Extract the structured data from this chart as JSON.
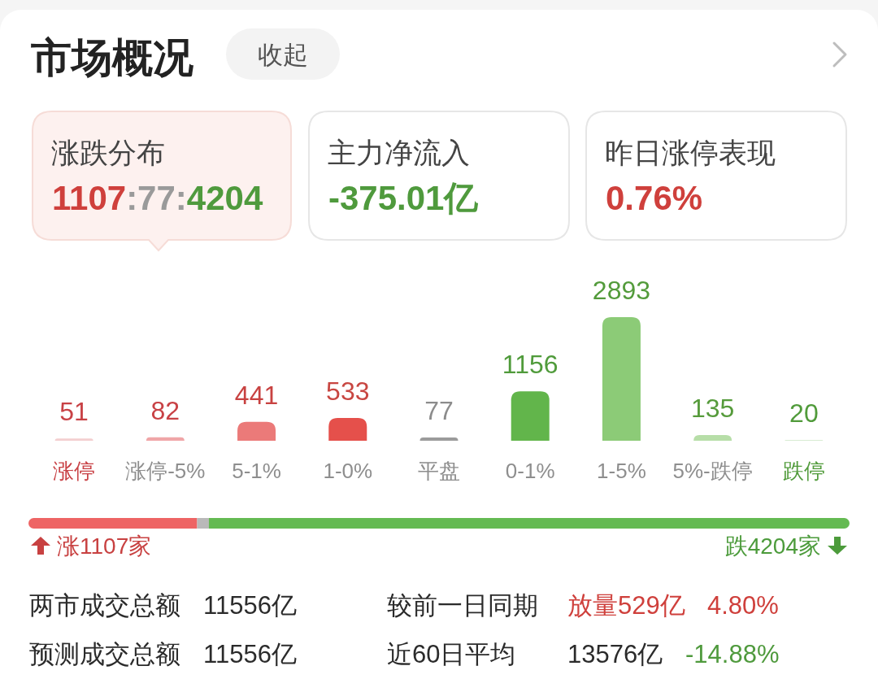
{
  "chart_data": [
    {
      "type": "other",
      "title": "市场概况",
      "annotations": [
        "收起",
        "涨跌分布",
        "1107:77:4204",
        "主力净流入",
        "-375.01亿",
        "昨日涨停表现",
        "0.76%"
      ]
    },
    {
      "type": "bar",
      "categories": [
        "涨停",
        "涨停-5%",
        "5-1%",
        "1-0%",
        "平盘",
        "0-1%",
        "1-5%",
        "5%-跌停",
        "跌停"
      ],
      "values": [
        51,
        82,
        441,
        533,
        77,
        1156,
        2893,
        135,
        20
      ],
      "colors": [
        "#f3cfd0",
        "#f0a6a8",
        "#eb7a79",
        "#e5504b",
        "#9b9b9b",
        "#62b54b",
        "#8ccb77",
        "#b7dea8",
        "#d8ecd2"
      ],
      "data_labels": true
    },
    {
      "type": "bar",
      "orientation": "horizontal",
      "stacked": true,
      "tick_labels": false,
      "categories": [
        null
      ],
      "series": [
        {
          "color": "#ee6464",
          "values": [
            1107
          ],
          "value_labels": [
            "涨1107家"
          ]
        },
        {
          "color": "#b9b9b9",
          "values": [
            77
          ]
        },
        {
          "color": "#64ba52",
          "values": [
            4204
          ],
          "value_labels": [
            "跌4204家"
          ]
        }
      ]
    },
    {
      "type": "other",
      "annotations": [
        "两市成交总额",
        "11556亿",
        "较前一日同期",
        "放量529亿",
        "4.80%",
        "预测成交总额",
        "11556亿",
        "近60日平均",
        "13576亿",
        "-14.88%"
      ]
    }
  ]
}
